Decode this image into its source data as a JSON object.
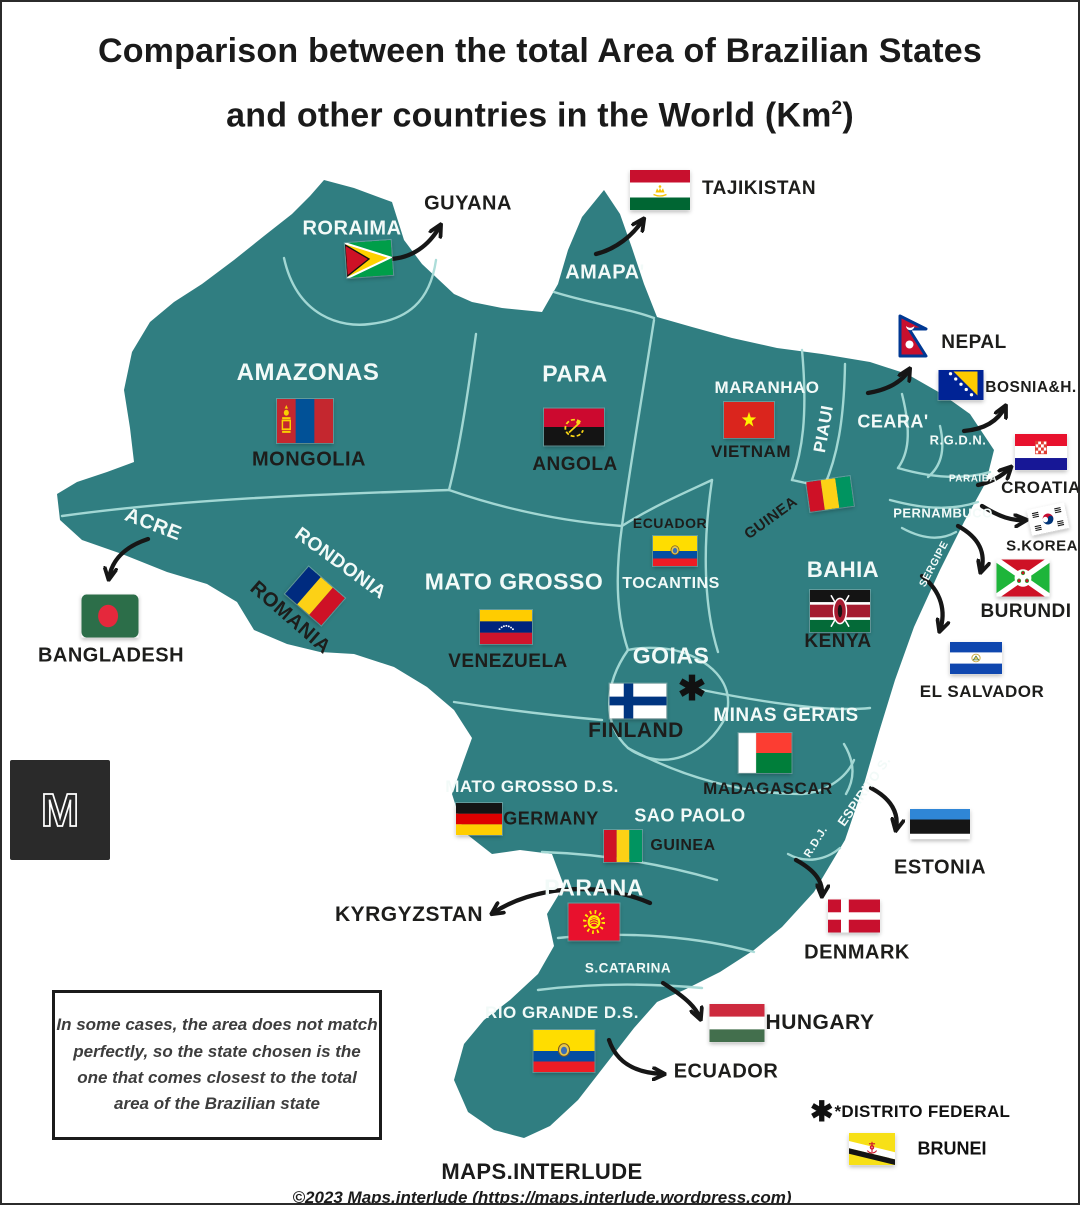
{
  "title": {
    "line1": "Comparison between the total Area of Brazilian States",
    "line2_prefix": "and other countries in the World (Km",
    "line2_sup": "2",
    "line2_suffix": ")"
  },
  "map": {
    "state_labels": [
      {
        "id": "roraima",
        "text": "RORAIMA"
      },
      {
        "id": "amapa",
        "text": "AMAPA'"
      },
      {
        "id": "amazonas",
        "text": "AMAZONAS"
      },
      {
        "id": "para",
        "text": "PARA"
      },
      {
        "id": "maranhao",
        "text": "MARANHAO"
      },
      {
        "id": "piaui",
        "text": "PIAUI"
      },
      {
        "id": "ceara",
        "text": "CEARA'"
      },
      {
        "id": "rgdn",
        "text": "R.G.D.N."
      },
      {
        "id": "paraiba",
        "text": "PARAIBA"
      },
      {
        "id": "pernambuco",
        "text": "PERNAMBUCO"
      },
      {
        "id": "sergipe",
        "text": "SERGIPE"
      },
      {
        "id": "acre",
        "text": "ACRE"
      },
      {
        "id": "rondonia",
        "text": "RONDONIA"
      },
      {
        "id": "matogrosso",
        "text": "MATO GROSSO"
      },
      {
        "id": "tocantins",
        "text": "TOCANTINS"
      },
      {
        "id": "bahia",
        "text": "BAHIA"
      },
      {
        "id": "goias",
        "text": "GOIAS"
      },
      {
        "id": "minasgerais",
        "text": "MINAS GERAIS"
      },
      {
        "id": "espirito",
        "text": "ESPIRITO S."
      },
      {
        "id": "matogrossods",
        "text": "MATO GROSSO D.S."
      },
      {
        "id": "saopaolo",
        "text": "SAO PAOLO"
      },
      {
        "id": "rdj",
        "text": "R.D.J."
      },
      {
        "id": "parana",
        "text": "PARANA"
      },
      {
        "id": "scatarina",
        "text": "S.CATARINA"
      },
      {
        "id": "riograndeds",
        "text": "RIO GRANDE D.S."
      }
    ],
    "country_labels": [
      {
        "id": "guyana",
        "text": "GUYANA"
      },
      {
        "id": "tajikistan",
        "text": "TAJIKISTAN"
      },
      {
        "id": "mongolia",
        "text": "MONGOLIA"
      },
      {
        "id": "angola",
        "text": "ANGOLA"
      },
      {
        "id": "vietnam",
        "text": "VIETNAM"
      },
      {
        "id": "nepal",
        "text": "NEPAL"
      },
      {
        "id": "bosnia",
        "text": "BOSNIA&H."
      },
      {
        "id": "croatia",
        "text": "CROATIA"
      },
      {
        "id": "skorea",
        "text": "S.KOREA"
      },
      {
        "id": "burundi",
        "text": "BURUNDI"
      },
      {
        "id": "elsalvador",
        "text": "EL SALVADOR"
      },
      {
        "id": "bangladesh",
        "text": "BANGLADESH"
      },
      {
        "id": "romania",
        "text": "ROMANIA"
      },
      {
        "id": "venezuela",
        "text": "VENEZUELA"
      },
      {
        "id": "ecuador_top",
        "text": "ECUADOR"
      },
      {
        "id": "guinea_top",
        "text": "GUINEA"
      },
      {
        "id": "kenya",
        "text": "KENYA"
      },
      {
        "id": "finland",
        "text": "FINLAND"
      },
      {
        "id": "madagascar",
        "text": "MADAGASCAR"
      },
      {
        "id": "germany",
        "text": "GERMANY"
      },
      {
        "id": "guinea_bottom",
        "text": "GUINEA"
      },
      {
        "id": "kyrgyzstan",
        "text": "KYRGYZSTAN"
      },
      {
        "id": "estonia",
        "text": "ESTONIA"
      },
      {
        "id": "denmark",
        "text": "DENMARK"
      },
      {
        "id": "hungary",
        "text": "HUNGARY"
      },
      {
        "id": "ecuador_bottom",
        "text": "ECUADOR"
      }
    ],
    "flags": [
      {
        "id": "guyana",
        "name": "guyana-flag"
      },
      {
        "id": "tajikistan",
        "name": "tajikistan-flag"
      },
      {
        "id": "mongolia",
        "name": "mongolia-flag"
      },
      {
        "id": "angola",
        "name": "angola-flag"
      },
      {
        "id": "vietnam",
        "name": "vietnam-flag"
      },
      {
        "id": "nepal",
        "name": "nepal-flag"
      },
      {
        "id": "bosnia",
        "name": "bosnia-herzegovina-flag"
      },
      {
        "id": "croatia",
        "name": "croatia-flag"
      },
      {
        "id": "skorea",
        "name": "south-korea-flag"
      },
      {
        "id": "burundi",
        "name": "burundi-flag"
      },
      {
        "id": "elsalvador",
        "name": "el-salvador-flag"
      },
      {
        "id": "bangladesh",
        "name": "bangladesh-flag"
      },
      {
        "id": "romania",
        "name": "romania-flag"
      },
      {
        "id": "venezuela",
        "name": "venezuela-flag"
      },
      {
        "id": "ecuador_top",
        "name": "ecuador-flag"
      },
      {
        "id": "guinea_top",
        "name": "guinea-flag"
      },
      {
        "id": "kenya",
        "name": "kenya-flag"
      },
      {
        "id": "finland",
        "name": "finland-flag"
      },
      {
        "id": "madagascar",
        "name": "madagascar-flag"
      },
      {
        "id": "germany",
        "name": "germany-flag"
      },
      {
        "id": "guinea_bottom",
        "name": "guinea-flag"
      },
      {
        "id": "kyrgyzstan",
        "name": "kyrgyzstan-flag"
      },
      {
        "id": "estonia",
        "name": "estonia-flag"
      },
      {
        "id": "denmark",
        "name": "denmark-flag"
      },
      {
        "id": "hungary",
        "name": "hungary-flag"
      },
      {
        "id": "ecuador_bottom",
        "name": "ecuador-flag"
      },
      {
        "id": "brunei",
        "name": "brunei-flag"
      }
    ],
    "asterisk_marker": "✱"
  },
  "note": {
    "lines": [
      "In some cases, the area does not match",
      "perfectly, so the state chosen is the",
      "one that comes closest to the total",
      "area of the Brazilian state"
    ]
  },
  "legend": {
    "asterisk": "✱",
    "label": "*DISTRITO FEDERAL",
    "brunei_label": "BRUNEI"
  },
  "footer": {
    "brand": "MAPS.INTERLUDE",
    "copyright": "©2023 Maps.interlude (https://maps.interlude.wordpress.com)"
  },
  "logo_letter": "M",
  "colors": {
    "map_fill": "#307E81",
    "map_border_lines": "#A9DCD8",
    "background": "#FFFFFF",
    "text_dark": "#1D1D1B",
    "text_light": "#F2FAF8"
  }
}
